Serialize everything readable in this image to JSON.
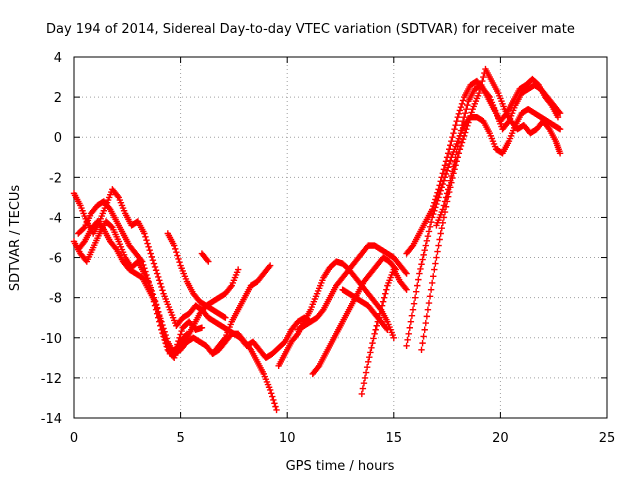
{
  "chart_data": {
    "type": "scatter",
    "title": "Day 194 of 2014, Sidereal Day-to-day VTEC variation (SDTVAR) for receiver mate",
    "xlabel": "GPS time / hours",
    "ylabel": "SDTVAR / TECUs",
    "xlim": [
      0,
      25
    ],
    "ylim": [
      -14,
      4
    ],
    "xticks": [
      0,
      5,
      10,
      15,
      20,
      25
    ],
    "yticks": [
      -14,
      -12,
      -10,
      -8,
      -6,
      -4,
      -2,
      0,
      2,
      4
    ],
    "xtick_labels": [
      "0",
      "5",
      "10",
      "15",
      "20",
      "25"
    ],
    "ytick_labels": [
      "-14",
      "-12",
      "-10",
      "-8",
      "-6",
      "-4",
      "-2",
      "0",
      "2",
      "4"
    ],
    "grid": true,
    "marker": "+",
    "color": "#ff0000",
    "series": [
      {
        "points": [
          [
            0.0,
            -5.2
          ],
          [
            0.3,
            -5.8
          ],
          [
            0.6,
            -6.2
          ],
          [
            0.9,
            -5.5
          ],
          [
            1.2,
            -4.8
          ],
          [
            1.5,
            -4.2
          ],
          [
            1.8,
            -4.5
          ],
          [
            2.1,
            -5.2
          ],
          [
            2.4,
            -6.0
          ],
          [
            2.7,
            -6.5
          ],
          [
            3.0,
            -6.2
          ],
          [
            3.3,
            -6.8
          ],
          [
            3.6,
            -7.5
          ],
          [
            3.9,
            -8.5
          ],
          [
            4.2,
            -9.8
          ],
          [
            4.5,
            -10.8
          ],
          [
            4.8,
            -10.5
          ],
          [
            5.1,
            -9.5
          ],
          [
            5.4,
            -9.2
          ],
          [
            5.7,
            -9.6
          ],
          [
            6.0,
            -9.5
          ]
        ]
      },
      {
        "points": [
          [
            0.2,
            -4.8
          ],
          [
            0.5,
            -4.5
          ],
          [
            0.8,
            -3.8
          ],
          [
            1.1,
            -3.4
          ],
          [
            1.4,
            -3.2
          ],
          [
            1.7,
            -3.6
          ],
          [
            2.0,
            -4.2
          ],
          [
            2.3,
            -4.8
          ],
          [
            2.6,
            -5.4
          ],
          [
            2.9,
            -5.8
          ],
          [
            3.2,
            -6.2
          ],
          [
            3.5,
            -7.2
          ],
          [
            3.8,
            -8.4
          ],
          [
            4.1,
            -9.6
          ],
          [
            4.4,
            -10.6
          ],
          [
            4.7,
            -11.0
          ],
          [
            5.0,
            -10.2
          ],
          [
            5.3,
            -9.8
          ]
        ]
      },
      {
        "points": [
          [
            0.0,
            -2.8
          ],
          [
            0.3,
            -3.4
          ],
          [
            0.6,
            -4.2
          ],
          [
            0.9,
            -4.8
          ],
          [
            1.2,
            -4.2
          ],
          [
            1.5,
            -3.4
          ],
          [
            1.8,
            -2.6
          ],
          [
            2.1,
            -3.0
          ],
          [
            2.4,
            -3.8
          ],
          [
            2.7,
            -4.4
          ],
          [
            3.0,
            -4.2
          ],
          [
            3.3,
            -4.8
          ],
          [
            3.6,
            -5.8
          ],
          [
            3.9,
            -6.8
          ],
          [
            4.2,
            -7.8
          ],
          [
            4.5,
            -8.6
          ],
          [
            4.8,
            -9.4
          ],
          [
            5.1,
            -9.0
          ],
          [
            5.4,
            -8.8
          ],
          [
            5.7,
            -8.4
          ],
          [
            6.0,
            -8.6
          ],
          [
            6.3,
            -9.0
          ],
          [
            6.6,
            -9.2
          ],
          [
            6.9,
            -9.4
          ],
          [
            7.2,
            -9.6
          ],
          [
            7.5,
            -9.8
          ],
          [
            7.8,
            -10.0
          ],
          [
            8.1,
            -10.4
          ],
          [
            8.4,
            -10.2
          ],
          [
            8.7,
            -10.6
          ],
          [
            9.0,
            -11.0
          ],
          [
            9.3,
            -10.8
          ],
          [
            9.6,
            -10.5
          ],
          [
            9.9,
            -10.2
          ],
          [
            10.2,
            -9.6
          ],
          [
            10.5,
            -9.2
          ],
          [
            10.8,
            -9.0
          ],
          [
            11.1,
            -9.2
          ]
        ]
      },
      {
        "points": [
          [
            0.2,
            -5.6
          ],
          [
            0.5,
            -5.2
          ],
          [
            0.8,
            -4.6
          ],
          [
            1.1,
            -4.2
          ],
          [
            1.4,
            -4.6
          ],
          [
            1.7,
            -5.2
          ],
          [
            2.0,
            -5.6
          ],
          [
            2.3,
            -6.2
          ],
          [
            2.6,
            -6.6
          ],
          [
            2.9,
            -6.8
          ],
          [
            3.2,
            -7.0
          ],
          [
            3.5,
            -7.6
          ],
          [
            3.8,
            -8.2
          ],
          [
            4.1,
            -9.2
          ],
          [
            4.4,
            -10.2
          ],
          [
            4.7,
            -10.8
          ],
          [
            5.0,
            -10.6
          ],
          [
            5.3,
            -10.2
          ],
          [
            5.6,
            -10.0
          ],
          [
            5.9,
            -10.2
          ],
          [
            6.2,
            -10.4
          ],
          [
            6.5,
            -10.8
          ],
          [
            6.8,
            -10.6
          ],
          [
            7.1,
            -10.2
          ],
          [
            7.4,
            -9.8
          ],
          [
            7.7,
            -9.8
          ],
          [
            8.0,
            -10.2
          ],
          [
            8.3,
            -10.6
          ],
          [
            8.6,
            -11.2
          ],
          [
            8.9,
            -11.8
          ],
          [
            9.2,
            -12.6
          ],
          [
            9.5,
            -13.6
          ]
        ]
      },
      {
        "points": [
          [
            4.4,
            -4.8
          ],
          [
            4.7,
            -5.4
          ],
          [
            5.0,
            -6.4
          ],
          [
            5.3,
            -7.2
          ],
          [
            5.6,
            -7.8
          ],
          [
            5.9,
            -8.2
          ],
          [
            6.2,
            -8.4
          ],
          [
            6.5,
            -8.6
          ],
          [
            6.8,
            -8.8
          ],
          [
            7.1,
            -9.0
          ]
        ]
      },
      {
        "points": [
          [
            6.0,
            -5.8
          ],
          [
            6.3,
            -6.2
          ]
        ]
      },
      {
        "points": [
          [
            6.5,
            -10.8
          ],
          [
            6.8,
            -10.4
          ],
          [
            7.1,
            -10.0
          ],
          [
            7.4,
            -9.2
          ],
          [
            7.7,
            -8.6
          ],
          [
            8.0,
            -8.0
          ],
          [
            8.3,
            -7.4
          ],
          [
            8.6,
            -7.2
          ],
          [
            8.9,
            -6.8
          ],
          [
            9.2,
            -6.4
          ]
        ]
      },
      {
        "points": [
          [
            5.0,
            -10.4
          ],
          [
            5.3,
            -10.0
          ],
          [
            5.6,
            -9.4
          ],
          [
            5.9,
            -8.8
          ],
          [
            6.2,
            -8.4
          ],
          [
            6.5,
            -8.2
          ],
          [
            6.8,
            -8.0
          ],
          [
            7.1,
            -7.8
          ],
          [
            7.4,
            -7.4
          ],
          [
            7.7,
            -6.6
          ]
        ]
      },
      {
        "points": [
          [
            9.6,
            -11.4
          ],
          [
            9.9,
            -10.8
          ],
          [
            10.2,
            -10.2
          ],
          [
            10.5,
            -9.8
          ],
          [
            10.8,
            -9.2
          ],
          [
            11.1,
            -8.6
          ],
          [
            11.4,
            -7.8
          ],
          [
            11.7,
            -7.0
          ],
          [
            12.0,
            -6.5
          ],
          [
            12.3,
            -6.2
          ],
          [
            12.6,
            -6.3
          ],
          [
            12.9,
            -6.6
          ],
          [
            13.2,
            -7.0
          ],
          [
            13.5,
            -7.4
          ],
          [
            13.8,
            -7.8
          ],
          [
            14.1,
            -8.2
          ],
          [
            14.4,
            -8.6
          ],
          [
            14.7,
            -9.2
          ],
          [
            15.0,
            -10.0
          ]
        ]
      },
      {
        "points": [
          [
            10.5,
            -9.6
          ],
          [
            10.8,
            -9.4
          ],
          [
            11.1,
            -9.2
          ],
          [
            11.4,
            -9.0
          ],
          [
            11.7,
            -8.6
          ],
          [
            12.0,
            -8.0
          ],
          [
            12.3,
            -7.4
          ],
          [
            12.6,
            -7.0
          ],
          [
            12.9,
            -6.6
          ],
          [
            13.2,
            -6.2
          ],
          [
            13.5,
            -5.8
          ],
          [
            13.8,
            -5.4
          ],
          [
            14.1,
            -5.4
          ],
          [
            14.4,
            -5.6
          ],
          [
            14.7,
            -5.8
          ],
          [
            15.0,
            -6.0
          ],
          [
            15.3,
            -6.4
          ],
          [
            15.6,
            -6.8
          ]
        ]
      },
      {
        "points": [
          [
            11.2,
            -11.8
          ],
          [
            11.5,
            -11.4
          ],
          [
            11.8,
            -10.8
          ],
          [
            12.1,
            -10.2
          ],
          [
            12.4,
            -9.6
          ],
          [
            12.7,
            -9.0
          ],
          [
            13.0,
            -8.4
          ],
          [
            13.3,
            -7.8
          ],
          [
            13.6,
            -7.2
          ],
          [
            13.9,
            -6.8
          ],
          [
            14.2,
            -6.4
          ],
          [
            14.5,
            -6.0
          ],
          [
            14.8,
            -6.2
          ],
          [
            15.1,
            -6.6
          ]
        ]
      },
      {
        "points": [
          [
            12.6,
            -7.6
          ],
          [
            12.9,
            -7.8
          ],
          [
            13.2,
            -8.0
          ],
          [
            13.5,
            -8.2
          ],
          [
            13.8,
            -8.4
          ],
          [
            14.1,
            -8.8
          ],
          [
            14.4,
            -9.2
          ],
          [
            14.7,
            -9.6
          ]
        ]
      },
      {
        "points": [
          [
            13.5,
            -12.8
          ],
          [
            13.8,
            -11.2
          ],
          [
            14.1,
            -9.8
          ],
          [
            14.4,
            -8.6
          ],
          [
            14.7,
            -7.4
          ],
          [
            15.0,
            -6.6
          ],
          [
            15.3,
            -7.2
          ],
          [
            15.6,
            -7.6
          ]
        ]
      },
      {
        "points": [
          [
            15.6,
            -10.4
          ],
          [
            15.9,
            -8.6
          ],
          [
            16.2,
            -6.8
          ],
          [
            16.5,
            -5.4
          ],
          [
            16.8,
            -4.0
          ],
          [
            17.1,
            -3.0
          ],
          [
            17.4,
            -2.0
          ],
          [
            17.7,
            -1.0
          ],
          [
            18.0,
            -0.2
          ],
          [
            18.3,
            0.6
          ],
          [
            18.6,
            1.0
          ],
          [
            18.9,
            1.0
          ],
          [
            19.2,
            0.8
          ],
          [
            19.5,
            0.2
          ],
          [
            19.8,
            -0.6
          ],
          [
            20.1,
            -0.8
          ],
          [
            20.4,
            -0.2
          ],
          [
            20.7,
            0.6
          ],
          [
            21.0,
            1.2
          ],
          [
            21.3,
            1.4
          ],
          [
            21.6,
            1.2
          ],
          [
            21.9,
            1.0
          ],
          [
            22.2,
            0.8
          ],
          [
            22.5,
            0.6
          ],
          [
            22.8,
            0.4
          ]
        ]
      },
      {
        "points": [
          [
            15.6,
            -5.8
          ],
          [
            15.9,
            -5.4
          ],
          [
            16.2,
            -4.8
          ],
          [
            16.5,
            -4.2
          ],
          [
            16.8,
            -3.6
          ],
          [
            17.1,
            -2.6
          ],
          [
            17.4,
            -1.4
          ],
          [
            17.7,
            -0.2
          ],
          [
            18.0,
            1.0
          ],
          [
            18.3,
            2.0
          ],
          [
            18.6,
            2.6
          ],
          [
            18.9,
            2.8
          ],
          [
            19.2,
            2.4
          ],
          [
            19.5,
            2.0
          ],
          [
            19.8,
            1.2
          ],
          [
            20.1,
            0.4
          ],
          [
            20.4,
            0.8
          ],
          [
            20.7,
            1.6
          ],
          [
            21.0,
            2.2
          ],
          [
            21.3,
            2.4
          ],
          [
            21.6,
            2.6
          ],
          [
            21.9,
            2.4
          ],
          [
            22.2,
            2.0
          ],
          [
            22.5,
            1.6
          ],
          [
            22.8,
            1.2
          ]
        ]
      },
      {
        "points": [
          [
            16.3,
            -10.6
          ],
          [
            16.6,
            -8.6
          ],
          [
            16.9,
            -6.6
          ],
          [
            17.2,
            -4.8
          ],
          [
            17.5,
            -3.2
          ],
          [
            17.8,
            -1.8
          ],
          [
            18.1,
            -0.6
          ],
          [
            18.4,
            0.4
          ],
          [
            18.7,
            1.4
          ],
          [
            19.0,
            2.2
          ],
          [
            19.3,
            3.4
          ],
          [
            19.6,
            2.8
          ],
          [
            19.9,
            2.2
          ],
          [
            20.2,
            1.4
          ],
          [
            20.5,
            0.8
          ],
          [
            20.8,
            0.4
          ],
          [
            21.1,
            0.6
          ],
          [
            21.4,
            0.2
          ],
          [
            21.7,
            0.4
          ],
          [
            22.0,
            0.8
          ],
          [
            22.3,
            0.4
          ],
          [
            22.6,
            -0.2
          ],
          [
            22.8,
            -0.8
          ]
        ]
      },
      {
        "points": [
          [
            17.0,
            -4.4
          ],
          [
            17.3,
            -3.6
          ],
          [
            17.6,
            -2.4
          ],
          [
            17.9,
            -1.0
          ],
          [
            18.2,
            0.6
          ],
          [
            18.5,
            1.8
          ],
          [
            18.8,
            2.4
          ],
          [
            19.1,
            2.6
          ],
          [
            19.4,
            2.0
          ],
          [
            19.7,
            1.4
          ],
          [
            20.0,
            0.8
          ],
          [
            20.3,
            1.2
          ],
          [
            20.6,
            1.8
          ],
          [
            20.9,
            2.4
          ],
          [
            21.2,
            2.6
          ],
          [
            21.5,
            2.9
          ],
          [
            21.8,
            2.6
          ],
          [
            22.1,
            2.0
          ],
          [
            22.4,
            1.6
          ],
          [
            22.7,
            1.0
          ]
        ]
      }
    ]
  }
}
